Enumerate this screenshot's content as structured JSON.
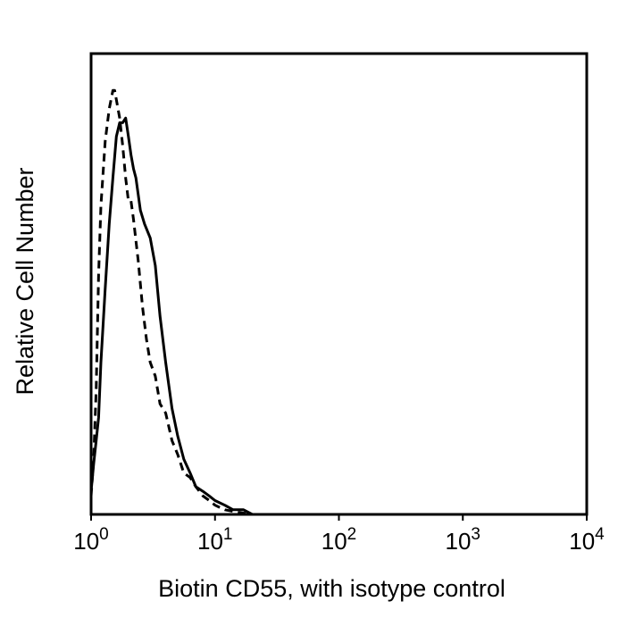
{
  "chart_data": {
    "type": "line",
    "title": "",
    "xlabel": "Biotin CD55, with isotype control",
    "ylabel": "Relative Cell Number",
    "x_scale": "log",
    "xlim": [
      1,
      10000
    ],
    "ylim": [
      0,
      1
    ],
    "grid": false,
    "x_ticks": [
      {
        "value": 1,
        "base": "10",
        "exp": "0"
      },
      {
        "value": 10,
        "base": "10",
        "exp": "1"
      },
      {
        "value": 100,
        "base": "10",
        "exp": "2"
      },
      {
        "value": 1000,
        "base": "10",
        "exp": "3"
      },
      {
        "value": 10000,
        "base": "10",
        "exp": "4"
      }
    ],
    "series": [
      {
        "style": "solid",
        "color": "#000000",
        "x": [
          1.0,
          1.05,
          1.1,
          1.15,
          1.2,
          1.3,
          1.4,
          1.5,
          1.6,
          1.7,
          1.8,
          1.9,
          2.0,
          2.1,
          2.2,
          2.3,
          2.5,
          2.7,
          3.0,
          3.3,
          3.6,
          4.0,
          4.5,
          5.0,
          5.6,
          6.3,
          7.0,
          8.0,
          9.0,
          10.0,
          12.0,
          14.0,
          17.0,
          20.0,
          40.0,
          100.0,
          300.0,
          10000.0
        ],
        "y": [
          0.05,
          0.11,
          0.16,
          0.21,
          0.33,
          0.49,
          0.63,
          0.73,
          0.82,
          0.85,
          0.85,
          0.86,
          0.82,
          0.78,
          0.75,
          0.73,
          0.66,
          0.63,
          0.6,
          0.54,
          0.43,
          0.33,
          0.23,
          0.17,
          0.12,
          0.09,
          0.06,
          0.05,
          0.04,
          0.03,
          0.02,
          0.01,
          0.01,
          0.0,
          0.0,
          0.0,
          0.0,
          0.0
        ]
      },
      {
        "style": "dashed",
        "color": "#000000",
        "x": [
          1.0,
          1.05,
          1.1,
          1.15,
          1.2,
          1.3,
          1.4,
          1.5,
          1.55,
          1.6,
          1.7,
          1.8,
          1.9,
          2.0,
          2.1,
          2.2,
          2.4,
          2.6,
          2.8,
          3.0,
          3.3,
          3.6,
          4.0,
          4.5,
          5.0,
          5.6,
          6.3,
          7.0,
          8.0,
          9.0,
          10.0,
          12.0,
          15.0,
          20.0,
          10000.0
        ],
        "y": [
          0.04,
          0.12,
          0.27,
          0.52,
          0.67,
          0.81,
          0.88,
          0.92,
          0.92,
          0.9,
          0.86,
          0.8,
          0.73,
          0.68,
          0.68,
          0.64,
          0.55,
          0.45,
          0.38,
          0.33,
          0.3,
          0.24,
          0.22,
          0.16,
          0.13,
          0.09,
          0.08,
          0.06,
          0.04,
          0.03,
          0.02,
          0.01,
          0.005,
          0.0,
          0.0
        ]
      }
    ]
  }
}
